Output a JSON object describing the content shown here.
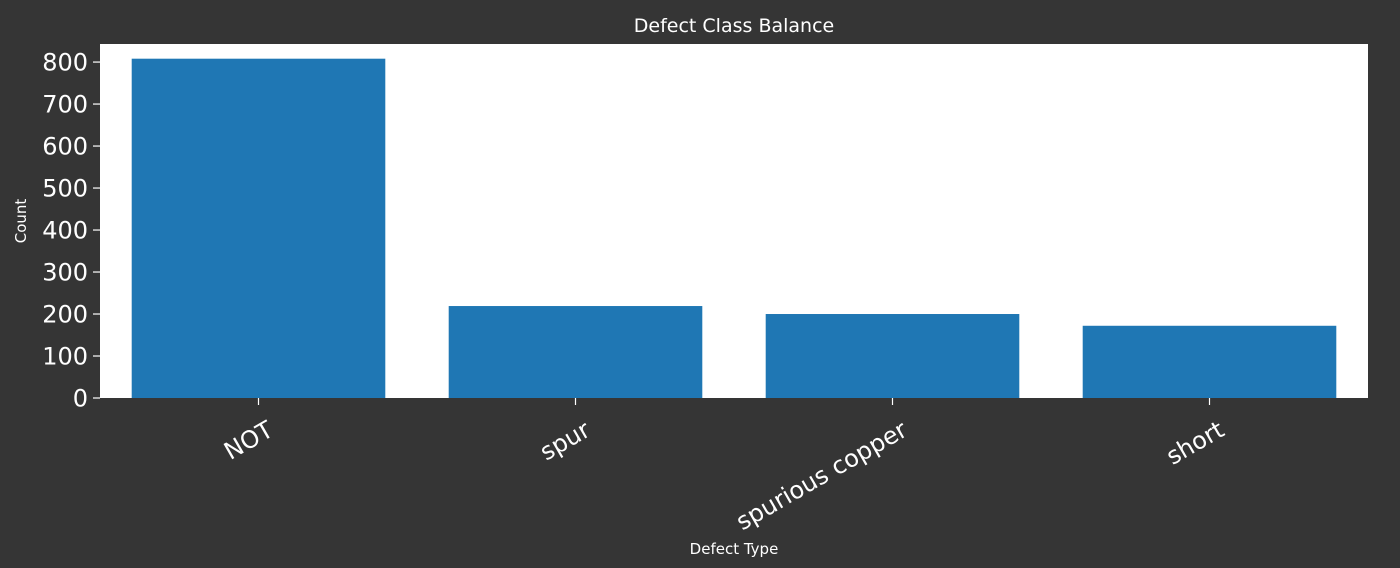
{
  "chart_data": {
    "type": "bar",
    "title": "Defect Class Balance",
    "xlabel": "Defect Type",
    "ylabel": "Count",
    "categories": [
      "NOT",
      "spur",
      "spurious copper",
      "short"
    ],
    "values": [
      808,
      219,
      200,
      172
    ],
    "ylim": [
      0,
      843
    ],
    "yticks": [
      0,
      100,
      200,
      300,
      400,
      500,
      600,
      700,
      800
    ],
    "grid": false,
    "legend": "none",
    "colors": {
      "bar": "#1f77b4",
      "plot_background": "#ffffff",
      "figure_background": "#353535",
      "text": "#ffffff"
    }
  }
}
